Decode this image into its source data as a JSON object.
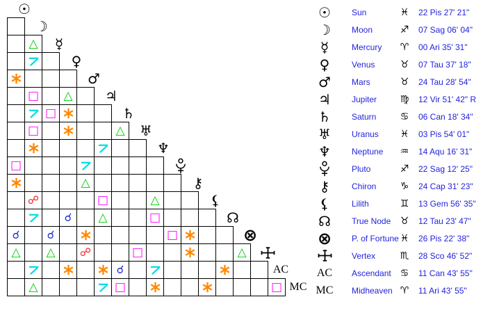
{
  "colors": {
    "text_blue": "#2222dd",
    "glyph_black": "#000000",
    "grid_line": "#000000",
    "background": "#ffffff"
  },
  "grid": {
    "planets_diagonal": [
      {
        "id": "sun",
        "glyph": "☉",
        "type": "text"
      },
      {
        "id": "moon",
        "glyph": "☽",
        "type": "text"
      },
      {
        "id": "mercury",
        "glyph": "☿",
        "type": "text"
      },
      {
        "id": "venus",
        "glyph": "♀",
        "type": "text"
      },
      {
        "id": "mars",
        "glyph": "♂",
        "type": "text"
      },
      {
        "id": "jupiter",
        "glyph": "♃",
        "type": "text"
      },
      {
        "id": "saturn",
        "glyph": "♄",
        "type": "text"
      },
      {
        "id": "uranus",
        "glyph": "♅",
        "type": "text"
      },
      {
        "id": "neptune",
        "glyph": "♆",
        "type": "text"
      },
      {
        "id": "pluto",
        "glyph": "pluto",
        "type": "svg"
      },
      {
        "id": "chiron",
        "glyph": "⚷",
        "type": "text"
      },
      {
        "id": "lilith",
        "glyph": "⚸",
        "type": "text"
      },
      {
        "id": "true-node",
        "glyph": "☊",
        "type": "text"
      },
      {
        "id": "fortune",
        "glyph": "⊗",
        "type": "text"
      },
      {
        "id": "vertex",
        "glyph": "vertex",
        "type": "svg"
      },
      {
        "id": "ascendant",
        "glyph": "AC",
        "type": "text-serif"
      },
      {
        "id": "midheaven",
        "glyph": "MC",
        "type": "text-serif"
      }
    ],
    "aspect_styles": {
      "conjunction": {
        "symbol": "☌",
        "color": "#2233cc",
        "render": "text",
        "size": 16
      },
      "opposition": {
        "symbol": "☍",
        "color": "#ee2222",
        "render": "text",
        "size": 16
      },
      "trine": {
        "symbol": "△",
        "color": "#00cc00",
        "render": "text",
        "size": 17
      },
      "square": {
        "symbol": "□",
        "color": "#ff00ff",
        "render": "text",
        "size": 17
      },
      "sextile": {
        "symbol": "sextile-star",
        "color": "#ff8800",
        "render": "svg"
      },
      "quincunx": {
        "symbol": "quincunx",
        "color": "#00dde8",
        "render": "svg"
      }
    },
    "aspects": [
      {
        "row": 2,
        "col": 1,
        "type": "trine"
      },
      {
        "row": 3,
        "col": 1,
        "type": "quincunx"
      },
      {
        "row": 4,
        "col": 0,
        "type": "sextile"
      },
      {
        "row": 5,
        "col": 1,
        "type": "square"
      },
      {
        "row": 5,
        "col": 3,
        "type": "trine"
      },
      {
        "row": 6,
        "col": 1,
        "type": "quincunx"
      },
      {
        "row": 6,
        "col": 2,
        "type": "square"
      },
      {
        "row": 6,
        "col": 3,
        "type": "sextile"
      },
      {
        "row": 7,
        "col": 1,
        "type": "square"
      },
      {
        "row": 7,
        "col": 3,
        "type": "sextile"
      },
      {
        "row": 7,
        "col": 6,
        "type": "trine"
      },
      {
        "row": 8,
        "col": 1,
        "type": "sextile"
      },
      {
        "row": 8,
        "col": 5,
        "type": "quincunx"
      },
      {
        "row": 9,
        "col": 0,
        "type": "square"
      },
      {
        "row": 9,
        "col": 4,
        "type": "quincunx"
      },
      {
        "row": 10,
        "col": 0,
        "type": "sextile"
      },
      {
        "row": 10,
        "col": 4,
        "type": "trine"
      },
      {
        "row": 11,
        "col": 1,
        "type": "opposition"
      },
      {
        "row": 11,
        "col": 5,
        "type": "square"
      },
      {
        "row": 11,
        "col": 8,
        "type": "trine"
      },
      {
        "row": 12,
        "col": 1,
        "type": "quincunx"
      },
      {
        "row": 12,
        "col": 3,
        "type": "conjunction"
      },
      {
        "row": 12,
        "col": 5,
        "type": "trine"
      },
      {
        "row": 12,
        "col": 8,
        "type": "square"
      },
      {
        "row": 13,
        "col": 0,
        "type": "conjunction"
      },
      {
        "row": 13,
        "col": 2,
        "type": "conjunction"
      },
      {
        "row": 13,
        "col": 4,
        "type": "sextile"
      },
      {
        "row": 13,
        "col": 9,
        "type": "square"
      },
      {
        "row": 13,
        "col": 10,
        "type": "sextile"
      },
      {
        "row": 14,
        "col": 0,
        "type": "trine"
      },
      {
        "row": 14,
        "col": 2,
        "type": "trine"
      },
      {
        "row": 14,
        "col": 4,
        "type": "opposition"
      },
      {
        "row": 14,
        "col": 7,
        "type": "square"
      },
      {
        "row": 14,
        "col": 10,
        "type": "sextile"
      },
      {
        "row": 14,
        "col": 13,
        "type": "trine"
      },
      {
        "row": 15,
        "col": 1,
        "type": "quincunx"
      },
      {
        "row": 15,
        "col": 3,
        "type": "sextile"
      },
      {
        "row": 15,
        "col": 5,
        "type": "sextile"
      },
      {
        "row": 15,
        "col": 6,
        "type": "conjunction"
      },
      {
        "row": 15,
        "col": 8,
        "type": "quincunx"
      },
      {
        "row": 15,
        "col": 12,
        "type": "sextile"
      },
      {
        "row": 16,
        "col": 1,
        "type": "trine"
      },
      {
        "row": 16,
        "col": 5,
        "type": "quincunx"
      },
      {
        "row": 16,
        "col": 6,
        "type": "square"
      },
      {
        "row": 16,
        "col": 8,
        "type": "sextile"
      },
      {
        "row": 16,
        "col": 11,
        "type": "sextile"
      },
      {
        "row": 16,
        "col": 15,
        "type": "square"
      }
    ]
  },
  "table": {
    "rows": [
      {
        "id": "sun",
        "glyph": "☉",
        "glyph_type": "text",
        "name": "Sun",
        "sign": "Pisces",
        "sign_glyph": "♓",
        "position": "22 Pis 27' 21\""
      },
      {
        "id": "moon",
        "glyph": "☽",
        "glyph_type": "text",
        "name": "Moon",
        "sign": "Sagittarius",
        "sign_glyph": "♐",
        "position": "07 Sag 06' 04\""
      },
      {
        "id": "mercury",
        "glyph": "☿",
        "glyph_type": "text",
        "name": "Mercury",
        "sign": "Aries",
        "sign_glyph": "♈",
        "position": "00 Ari 35' 31\""
      },
      {
        "id": "venus",
        "glyph": "♀",
        "glyph_type": "text",
        "name": "Venus",
        "sign": "Taurus",
        "sign_glyph": "♉",
        "position": "07 Tau 37' 18\""
      },
      {
        "id": "mars",
        "glyph": "♂",
        "glyph_type": "text",
        "name": "Mars",
        "sign": "Taurus",
        "sign_glyph": "♉",
        "position": "24 Tau 28' 54\""
      },
      {
        "id": "jupiter",
        "glyph": "♃",
        "glyph_type": "text",
        "name": "Jupiter",
        "sign": "Virgo",
        "sign_glyph": "♍",
        "position": "12 Vir 51' 42\" R"
      },
      {
        "id": "saturn",
        "glyph": "♄",
        "glyph_type": "text",
        "name": "Saturn",
        "sign": "Cancer",
        "sign_glyph": "♋",
        "position": "06 Can 18' 34\""
      },
      {
        "id": "uranus",
        "glyph": "♅",
        "glyph_type": "text",
        "name": "Uranus",
        "sign": "Pisces",
        "sign_glyph": "♓",
        "position": "03 Pis 54' 01\""
      },
      {
        "id": "neptune",
        "glyph": "♆",
        "glyph_type": "text",
        "name": "Neptune",
        "sign": "Aquarius",
        "sign_glyph": "♒",
        "position": "14 Aqu 16' 31\""
      },
      {
        "id": "pluto",
        "glyph": "pluto",
        "glyph_type": "svg",
        "name": "Pluto",
        "sign": "Sagittarius",
        "sign_glyph": "♐",
        "position": "22 Sag 12' 25\""
      },
      {
        "id": "chiron",
        "glyph": "⚷",
        "glyph_type": "text",
        "name": "Chiron",
        "sign": "Capricorn",
        "sign_glyph": "♑",
        "position": "24 Cap 31' 23\""
      },
      {
        "id": "lilith",
        "glyph": "⚸",
        "glyph_type": "text",
        "name": "Lilith",
        "sign": "Gemini",
        "sign_glyph": "♊",
        "position": "13 Gem 56' 35\""
      },
      {
        "id": "true-node",
        "glyph": "☊",
        "glyph_type": "text",
        "name": "True Node",
        "sign": "Taurus",
        "sign_glyph": "♉",
        "position": "12 Tau 23' 47\""
      },
      {
        "id": "fortune",
        "glyph": "⊗",
        "glyph_type": "text",
        "name": "P. of Fortune",
        "sign": "Pisces",
        "sign_glyph": "♓",
        "position": "26 Pis 22' 38\""
      },
      {
        "id": "vertex",
        "glyph": "vertex",
        "glyph_type": "svg",
        "name": "Vertex",
        "sign": "Scorpio",
        "sign_glyph": "♏",
        "position": "28 Sco 46' 52\""
      },
      {
        "id": "ascendant",
        "glyph": "AC",
        "glyph_type": "text-serif",
        "name": "Ascendant",
        "sign": "Cancer",
        "sign_glyph": "♋",
        "position": "11 Can 43' 55\""
      },
      {
        "id": "midheaven",
        "glyph": "MC",
        "glyph_type": "text-serif",
        "name": "Midheaven",
        "sign": "Aries",
        "sign_glyph": "♈",
        "position": "11 Ari 43' 55\""
      }
    ]
  }
}
